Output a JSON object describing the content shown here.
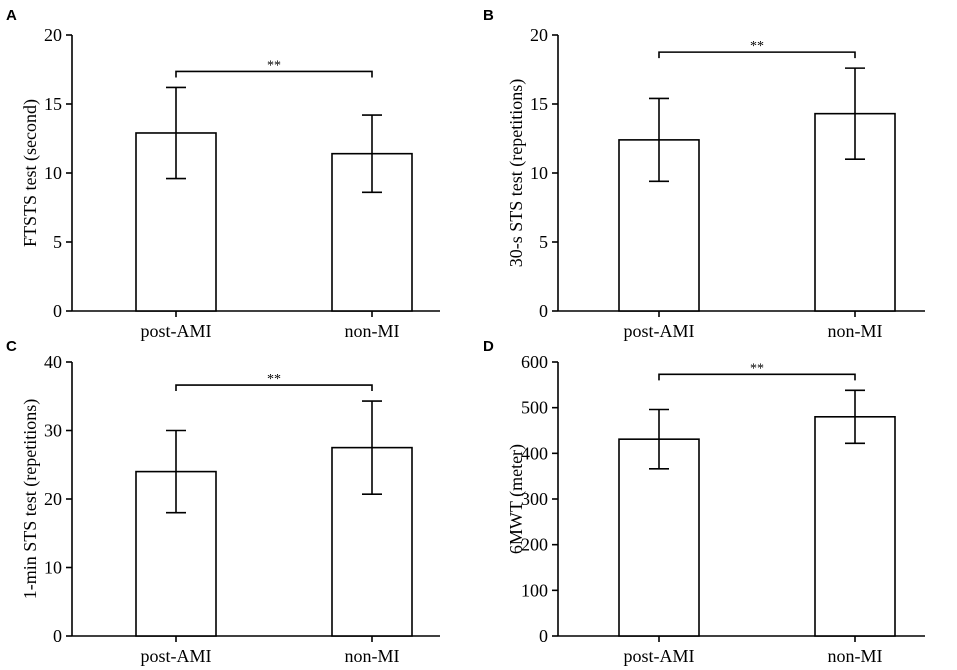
{
  "chart_data": [
    {
      "panel": "A",
      "type": "bar",
      "ylabel": "FTSTS test (second)",
      "categories": [
        "post-AMI",
        "non-MI"
      ],
      "values": [
        12.9,
        11.4
      ],
      "errors": [
        3.3,
        2.8
      ],
      "ylim": [
        0,
        20
      ],
      "yticks": [
        "0",
        "5",
        "10",
        "15",
        "20"
      ],
      "significance": "**"
    },
    {
      "panel": "B",
      "type": "bar",
      "ylabel": "30-s STS test (repetitions)",
      "categories": [
        "post-AMI",
        "non-MI"
      ],
      "values": [
        12.4,
        14.3
      ],
      "errors": [
        3.0,
        3.3
      ],
      "ylim": [
        0,
        20
      ],
      "yticks": [
        "0",
        "5",
        "10",
        "15",
        "20"
      ],
      "significance": "**"
    },
    {
      "panel": "C",
      "type": "bar",
      "ylabel": "1-min STS test (repetitions)",
      "categories": [
        "post-AMI",
        "non-MI"
      ],
      "values": [
        24.0,
        27.5
      ],
      "errors": [
        6.0,
        6.8
      ],
      "ylim": [
        0,
        40
      ],
      "yticks": [
        "0",
        "10",
        "20",
        "30",
        "40"
      ],
      "significance": "**"
    },
    {
      "panel": "D",
      "type": "bar",
      "ylabel": "6MWT (meter)",
      "categories": [
        "post-AMI",
        "non-MI"
      ],
      "values": [
        431,
        480
      ],
      "errors": [
        65,
        58
      ],
      "ylim": [
        0,
        600
      ],
      "yticks": [
        "0",
        "100",
        "200",
        "300",
        "400",
        "500",
        "600"
      ],
      "significance": "**"
    }
  ]
}
